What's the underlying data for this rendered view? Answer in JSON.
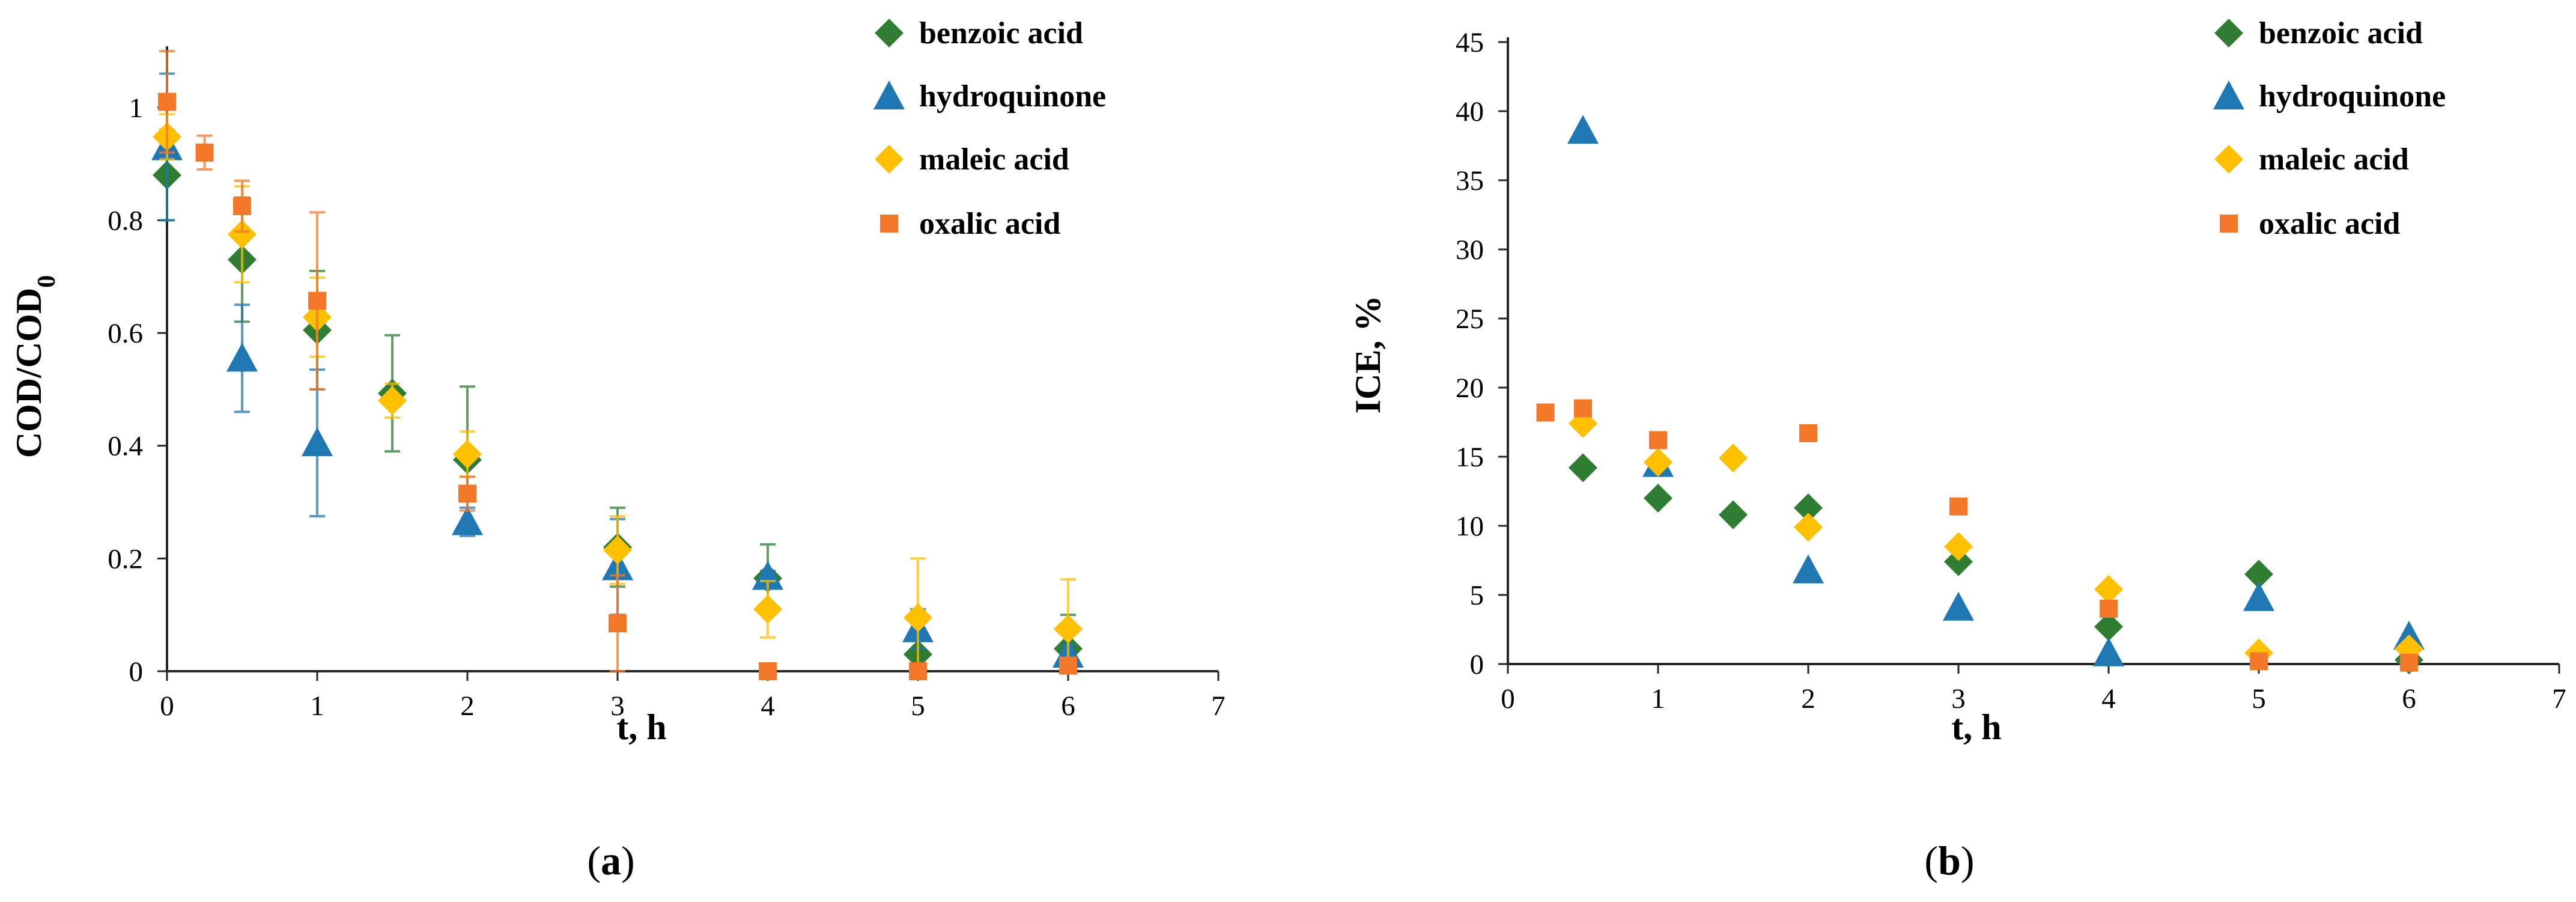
{
  "colors": {
    "benzoic acid": "#2e7d32",
    "hydroquinone": "#1f77b4",
    "maleic acid": "#ffc000",
    "oxalic acid": "#f4782a",
    "axis": "#262626"
  },
  "panels": [
    {
      "label_prefix": "(",
      "label_letter": "a",
      "label_suffix": ")"
    },
    {
      "label_prefix": "(",
      "label_letter": "b",
      "label_suffix": ")"
    }
  ],
  "chart_data": [
    {
      "type": "scatter",
      "title": "",
      "xlabel": "t, h",
      "ylabel": "COD/COD",
      "ylabel_subscript": "0",
      "xlim": [
        0,
        7
      ],
      "ylim": [
        0,
        1.1
      ],
      "xticks": [
        "0",
        "1",
        "2",
        "3",
        "4",
        "5",
        "6",
        "7"
      ],
      "yticks": [
        "0",
        "0.2",
        "0.4",
        "0.6",
        "0.8",
        "1"
      ],
      "legend_position": "top-right",
      "series": [
        {
          "name": "benzoic acid",
          "marker": "diamond",
          "points": [
            {
              "x": 0,
              "y": 0.88,
              "err": 0.08
            },
            {
              "x": 0.5,
              "y": 0.73,
              "err": 0.11
            },
            {
              "x": 1,
              "y": 0.605,
              "err": 0.105
            },
            {
              "x": 1.5,
              "y": 0.493,
              "err": 0.103
            },
            {
              "x": 2,
              "y": 0.375,
              "err": 0.13
            },
            {
              "x": 3,
              "y": 0.22,
              "err": 0.07
            },
            {
              "x": 4,
              "y": 0.165,
              "err": 0.06
            },
            {
              "x": 5,
              "y": 0.03,
              "err": 0.01
            },
            {
              "x": 6,
              "y": 0.04,
              "err": 0.06
            }
          ]
        },
        {
          "name": "hydroquinone",
          "marker": "triangle",
          "points": [
            {
              "x": 0,
              "y": 0.93,
              "err": 0.13
            },
            {
              "x": 0.5,
              "y": 0.555,
              "err": 0.095
            },
            {
              "x": 1,
              "y": 0.405,
              "err": 0.13
            },
            {
              "x": 2,
              "y": 0.265,
              "err": 0.025
            },
            {
              "x": 3,
              "y": 0.185,
              "err": 0.085
            },
            {
              "x": 4,
              "y": 0.168,
              "err": 0.01
            },
            {
              "x": 5,
              "y": 0.075,
              "err": 0.035
            },
            {
              "x": 6,
              "y": 0.03,
              "err": 0.015
            }
          ]
        },
        {
          "name": "maleic acid",
          "marker": "diamond",
          "points": [
            {
              "x": 0,
              "y": 0.948,
              "err": 0.04
            },
            {
              "x": 0.5,
              "y": 0.775,
              "err": 0.085
            },
            {
              "x": 1,
              "y": 0.628,
              "err": 0.07
            },
            {
              "x": 1.5,
              "y": 0.48,
              "err": 0.03
            },
            {
              "x": 2,
              "y": 0.385,
              "err": 0.04
            },
            {
              "x": 3,
              "y": 0.215,
              "err": 0.06
            },
            {
              "x": 4,
              "y": 0.11,
              "err": 0.05
            },
            {
              "x": 5,
              "y": 0.095,
              "err": 0.105
            },
            {
              "x": 6,
              "y": 0.075,
              "err": 0.088
            }
          ]
        },
        {
          "name": "oxalic acid",
          "marker": "square",
          "points": [
            {
              "x": 0,
              "y": 1.01,
              "err": 0.09
            },
            {
              "x": 0.25,
              "y": 0.92,
              "err": 0.03
            },
            {
              "x": 0.5,
              "y": 0.825,
              "err": 0.045
            },
            {
              "x": 1,
              "y": 0.657,
              "err": 0.157
            },
            {
              "x": 2,
              "y": 0.315,
              "err": 0.03
            },
            {
              "x": 3,
              "y": 0.085,
              "err": 0.085
            },
            {
              "x": 4,
              "y": 0.0,
              "err": 0
            },
            {
              "x": 5,
              "y": 0.0,
              "err": 0
            },
            {
              "x": 6,
              "y": 0.01,
              "err": 0
            }
          ]
        }
      ]
    },
    {
      "type": "scatter",
      "title": "",
      "xlabel": "t, h",
      "ylabel": "ICE, %",
      "xlim": [
        0,
        7
      ],
      "ylim": [
        0,
        45
      ],
      "xticks": [
        "0",
        "1",
        "2",
        "3",
        "4",
        "5",
        "6",
        "7"
      ],
      "yticks": [
        "0",
        "5",
        "10",
        "15",
        "20",
        "25",
        "30",
        "35",
        "40",
        "45"
      ],
      "legend_position": "top-right",
      "series": [
        {
          "name": "benzoic acid",
          "marker": "diamond",
          "points": [
            {
              "x": 0.5,
              "y": 14.2
            },
            {
              "x": 1,
              "y": 12.0
            },
            {
              "x": 1.5,
              "y": 10.8
            },
            {
              "x": 2,
              "y": 11.3
            },
            {
              "x": 3,
              "y": 7.4
            },
            {
              "x": 4,
              "y": 2.7
            },
            {
              "x": 5,
              "y": 6.5
            },
            {
              "x": 6,
              "y": 0.3
            }
          ]
        },
        {
          "name": "hydroquinone",
          "marker": "triangle",
          "points": [
            {
              "x": 0.5,
              "y": 38.6
            },
            {
              "x": 1,
              "y": 14.5
            },
            {
              "x": 2,
              "y": 6.8
            },
            {
              "x": 3,
              "y": 4.1
            },
            {
              "x": 4,
              "y": 0.8
            },
            {
              "x": 5,
              "y": 4.8
            },
            {
              "x": 6,
              "y": 2.0
            }
          ]
        },
        {
          "name": "maleic acid",
          "marker": "diamond",
          "points": [
            {
              "x": 0.5,
              "y": 17.4
            },
            {
              "x": 1,
              "y": 14.6
            },
            {
              "x": 1.5,
              "y": 14.9
            },
            {
              "x": 2,
              "y": 9.9
            },
            {
              "x": 3,
              "y": 8.5
            },
            {
              "x": 4,
              "y": 5.4
            },
            {
              "x": 5,
              "y": 0.8
            },
            {
              "x": 6,
              "y": 1.1
            }
          ]
        },
        {
          "name": "oxalic acid",
          "marker": "square",
          "points": [
            {
              "x": 0.25,
              "y": 18.2
            },
            {
              "x": 0.5,
              "y": 18.5
            },
            {
              "x": 1,
              "y": 16.2
            },
            {
              "x": 2,
              "y": 16.7
            },
            {
              "x": 3,
              "y": 11.4
            },
            {
              "x": 4,
              "y": 4.0
            },
            {
              "x": 5,
              "y": 0.2
            },
            {
              "x": 6,
              "y": 0.1
            }
          ]
        }
      ]
    }
  ]
}
